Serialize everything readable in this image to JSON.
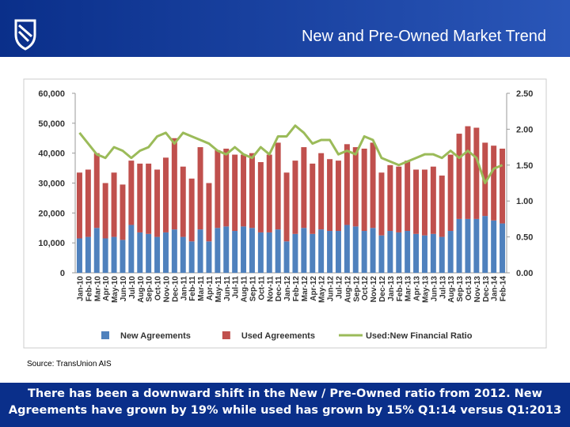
{
  "header": {
    "title": "New and Pre-Owned Market Trend"
  },
  "source": "Source: TransUnion AIS",
  "footer": "There has been a downward shift in the New / Pre-Owned ratio from 2012. New Agreements have grown by 19% while used has grown by 15% Q1:14 versus Q1:2013",
  "chart_data": {
    "type": "bar",
    "stacked": true,
    "categories": [
      "Jan-10",
      "Feb-10",
      "Mar-10",
      "Apr-10",
      "May-10",
      "Jun-10",
      "Jul-10",
      "Aug-10",
      "Sep-10",
      "Oct-10",
      "Nov-10",
      "Dec-10",
      "Jan-11",
      "Feb-11",
      "Mar-11",
      "Apr-11",
      "May-11",
      "Jun-11",
      "Jul-11",
      "Aug-11",
      "Sep-11",
      "Oct-11",
      "Nov-11",
      "Dec-11",
      "Jan-12",
      "Feb-12",
      "Mar-12",
      "Apr-12",
      "May-12",
      "Jun-12",
      "Jul-12",
      "Aug-12",
      "Sep-12",
      "Oct-12",
      "Nov-12",
      "Dec-12",
      "Jan-13",
      "Feb-13",
      "Mar-13",
      "Apr-13",
      "May-13",
      "Jun-13",
      "Jul-13",
      "Aug-13",
      "Sep-13",
      "Oct-13",
      "Nov-13",
      "Dec-13",
      "Jan-14",
      "Feb-14"
    ],
    "series": [
      {
        "name": "New Agreements",
        "color": "#4f81bd",
        "values": [
          11500,
          12000,
          15000,
          11500,
          12000,
          11000,
          16000,
          13500,
          13000,
          12000,
          13500,
          14500,
          12000,
          10500,
          14500,
          10500,
          15000,
          15500,
          14000,
          15500,
          15000,
          13500,
          13500,
          14500,
          10500,
          13000,
          15000,
          13000,
          14500,
          14000,
          14000,
          16000,
          15500,
          14000,
          15000,
          12500,
          14000,
          13500,
          14000,
          13000,
          12500,
          13000,
          12000,
          14000,
          18000,
          18000,
          18000,
          19000,
          17500,
          16500
        ]
      },
      {
        "name": "Used Agreements",
        "color": "#c0504d",
        "values": [
          22000,
          22500,
          25000,
          18500,
          21500,
          18500,
          21500,
          23000,
          23500,
          22500,
          25000,
          30500,
          23500,
          21000,
          27500,
          19500,
          26000,
          26000,
          25500,
          24000,
          25000,
          23500,
          26000,
          29000,
          23000,
          24500,
          27000,
          23500,
          25500,
          24000,
          23500,
          27000,
          26500,
          27500,
          28500,
          21000,
          22000,
          22000,
          23500,
          21500,
          22000,
          22500,
          20500,
          25500,
          28500,
          31000,
          30500,
          24500,
          25000,
          25000
        ]
      },
      {
        "name": "Used:New Financial Ratio",
        "color": "#9bbb59",
        "type": "line",
        "axis": "y2",
        "values": [
          1.95,
          1.8,
          1.65,
          1.6,
          1.75,
          1.7,
          1.6,
          1.7,
          1.75,
          1.9,
          1.95,
          1.8,
          1.95,
          1.9,
          1.85,
          1.8,
          1.7,
          1.65,
          1.75,
          1.65,
          1.6,
          1.75,
          1.65,
          1.9,
          1.9,
          2.05,
          1.95,
          1.8,
          1.85,
          1.85,
          1.65,
          1.7,
          1.65,
          1.9,
          1.85,
          1.6,
          1.55,
          1.5,
          1.55,
          1.6,
          1.65,
          1.65,
          1.6,
          1.7,
          1.6,
          1.7,
          1.6,
          1.25,
          1.45,
          1.5
        ]
      }
    ],
    "ylim": [
      0,
      60000
    ],
    "yticks": [
      0,
      {
        "value": 10000,
        "label": "10,000"
      },
      {
        "value": 20000,
        "label": "20,000"
      },
      {
        "value": 30000,
        "label": "30,000"
      },
      {
        "value": 40000,
        "label": "40,000"
      },
      {
        "value": 50000,
        "label": "50,000"
      },
      {
        "value": 60000,
        "label": "60,000"
      }
    ],
    "y2lim": [
      0,
      2.5
    ],
    "y2ticks": [
      {
        "value": 0,
        "label": "0.00"
      },
      {
        "value": 0.5,
        "label": "0.50"
      },
      {
        "value": 1,
        "label": "1.00"
      },
      {
        "value": 1.5,
        "label": "1.50"
      },
      {
        "value": 2,
        "label": "2.00"
      },
      {
        "value": 2.5,
        "label": "2.50"
      }
    ],
    "legend": "bottom"
  }
}
